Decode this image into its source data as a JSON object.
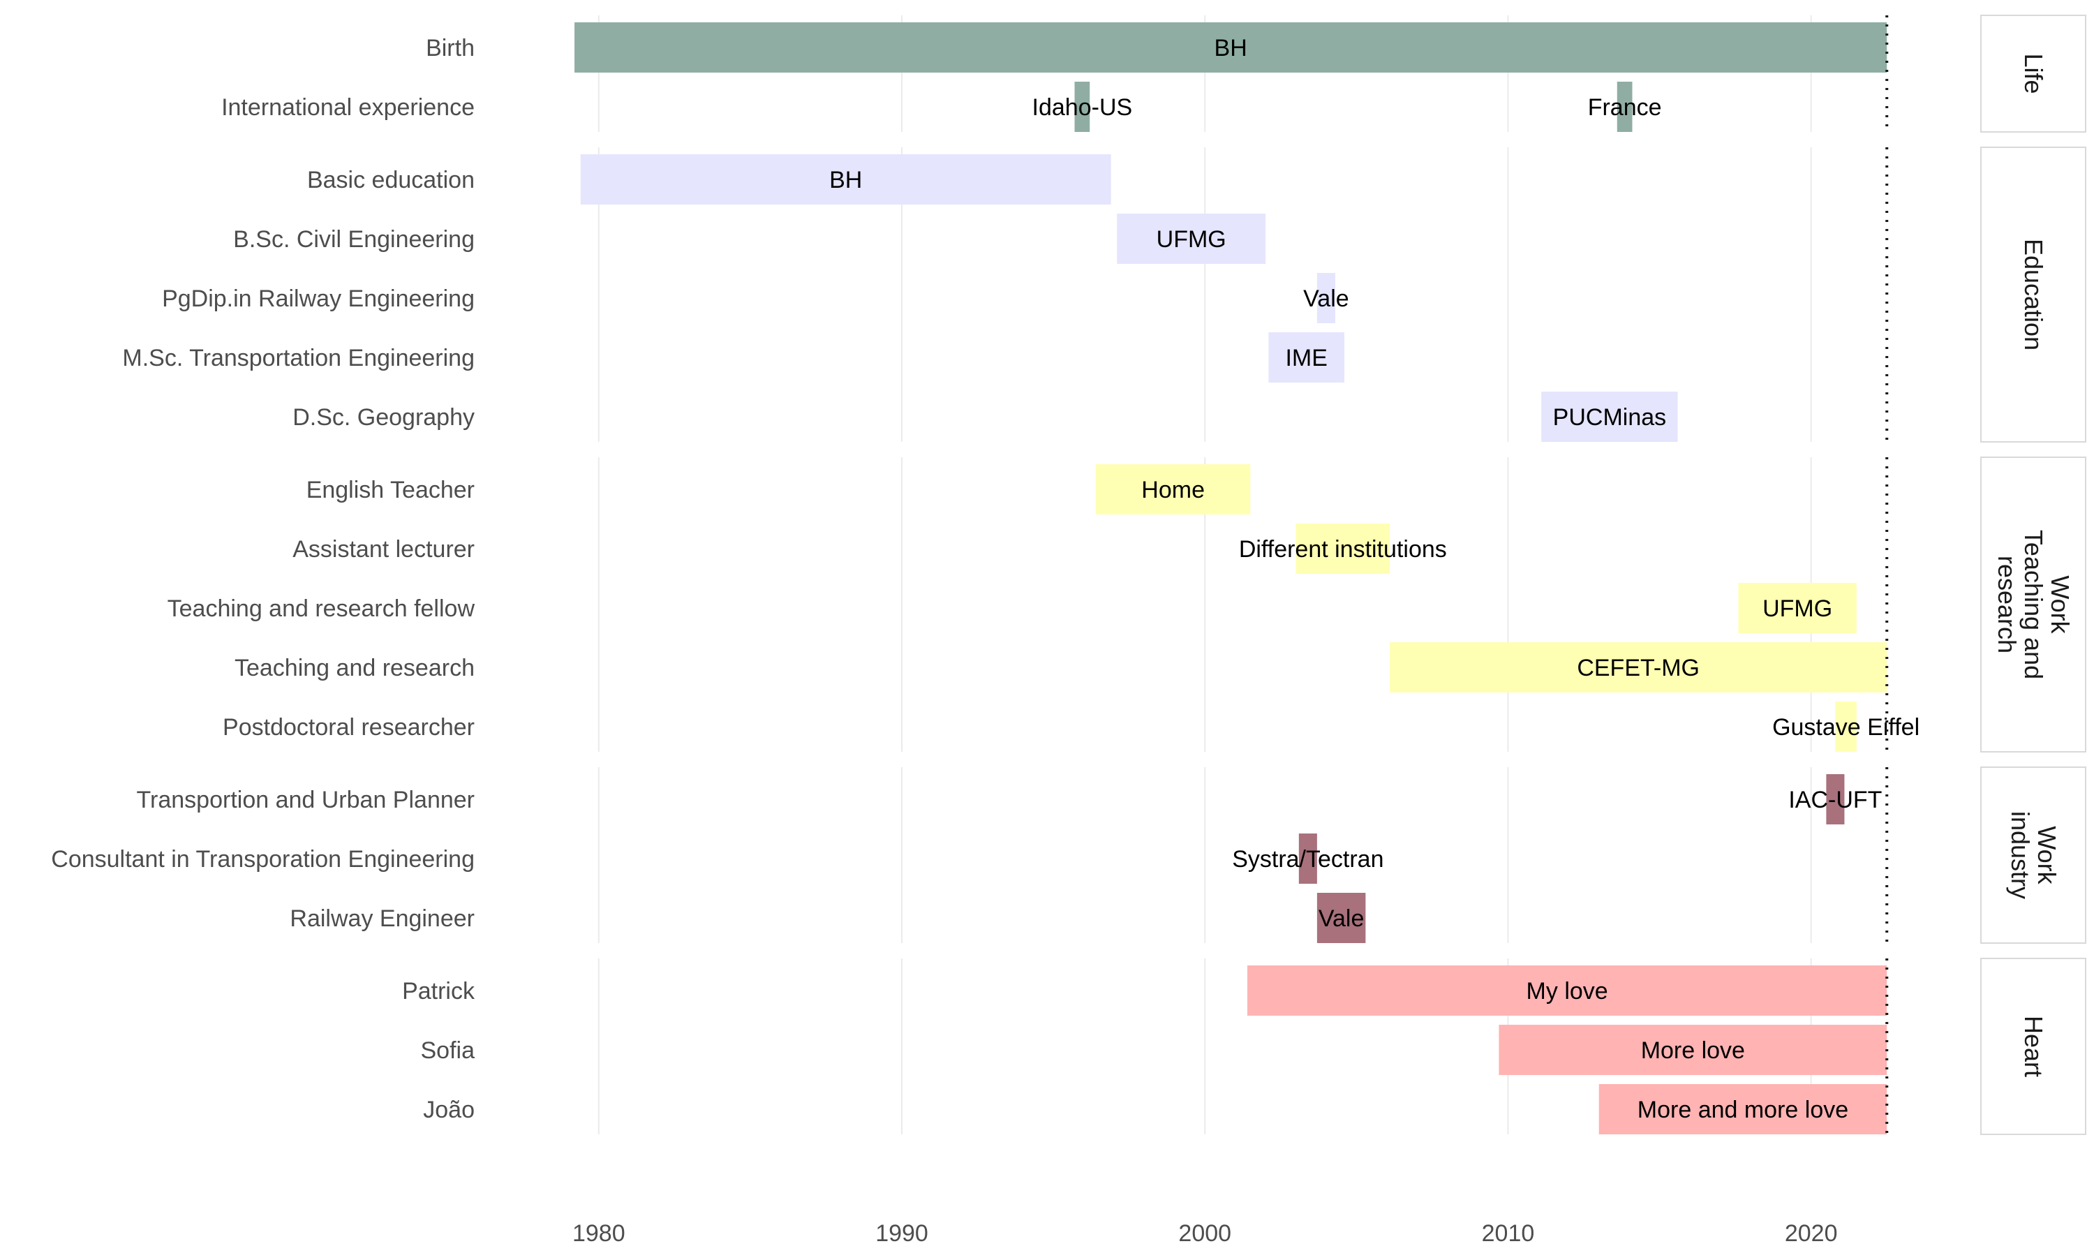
{
  "chart_data": {
    "type": "timeline",
    "title": "",
    "xlabel": "",
    "ylabel": "",
    "xlim": [
      1978.6,
      2023.6
    ],
    "x_ticks": [
      1980,
      1990,
      2000,
      2010,
      2020
    ],
    "reference_line": 2022.5,
    "grid": true,
    "legend": "none",
    "groups": [
      {
        "name": "Life",
        "color": "#8fada3",
        "rows": [
          {
            "label": "Birth",
            "bars": [
              {
                "text": "BH",
                "start": 1979.2,
                "end": 2022.5
              }
            ]
          },
          {
            "label": "International experience",
            "bars": [
              {
                "text": "Idaho-US",
                "start": 1995.7,
                "end": 1996.2
              },
              {
                "text": "France",
                "start": 2013.6,
                "end": 2014.1
              }
            ]
          }
        ]
      },
      {
        "name": "Education",
        "color": "#e5e5fd",
        "rows": [
          {
            "label": "Basic education",
            "bars": [
              {
                "text": "BH",
                "start": 1979.4,
                "end": 1996.9
              }
            ]
          },
          {
            "label": "B.Sc. Civil Engineering",
            "bars": [
              {
                "text": "UFMG",
                "start": 1997.1,
                "end": 2002.0
              }
            ]
          },
          {
            "label": "PgDip.in Railway Engineering",
            "bars": [
              {
                "text": "Vale",
                "start": 2003.7,
                "end": 2004.3
              }
            ]
          },
          {
            "label": "M.Sc. Transportation Engineering",
            "bars": [
              {
                "text": "IME",
                "start": 2002.1,
                "end": 2004.6
              }
            ]
          },
          {
            "label": "D.Sc. Geography",
            "bars": [
              {
                "text": "PUCMinas",
                "start": 2011.1,
                "end": 2015.6
              }
            ]
          }
        ]
      },
      {
        "name": "Work\nTeaching and\nresearch",
        "color": "#ffffb3",
        "rows": [
          {
            "label": "English Teacher",
            "bars": [
              {
                "text": "Home",
                "start": 1996.4,
                "end": 2001.5
              }
            ]
          },
          {
            "label": "Assistant lecturer",
            "bars": [
              {
                "text": "Different institutions",
                "start": 2003.0,
                "end": 2006.1
              }
            ]
          },
          {
            "label": "Teaching and research fellow",
            "bars": [
              {
                "text": "UFMG",
                "start": 2017.6,
                "end": 2021.5
              }
            ]
          },
          {
            "label": "Teaching and research",
            "bars": [
              {
                "text": "CEFET-MG",
                "start": 2006.1,
                "end": 2022.5
              }
            ]
          },
          {
            "label": "Postdoctoral researcher",
            "bars": [
              {
                "text": "Gustave Eiffel",
                "start": 2020.8,
                "end": 2021.5
              }
            ]
          }
        ]
      },
      {
        "name": "Work\nindustry",
        "color": "#a8717c",
        "rows": [
          {
            "label": "Transportion and Urban Planner",
            "bars": [
              {
                "text": "IAC-UFT",
                "start": 2020.5,
                "end": 2021.1
              }
            ]
          },
          {
            "label": "Consultant in Transporation Engineering",
            "bars": [
              {
                "text": "Systra/Tectran",
                "start": 2003.1,
                "end": 2003.7
              }
            ]
          },
          {
            "label": "Railway Engineer",
            "bars": [
              {
                "text": "Vale",
                "start": 2003.7,
                "end": 2005.3
              }
            ]
          }
        ]
      },
      {
        "name": "Heart",
        "color": "#ffb3b3",
        "rows": [
          {
            "label": "Patrick",
            "bars": [
              {
                "text": "My love",
                "start": 2001.4,
                "end": 2022.5
              }
            ]
          },
          {
            "label": "Sofia",
            "bars": [
              {
                "text": "More love",
                "start": 2009.7,
                "end": 2022.5
              }
            ]
          },
          {
            "label": "João",
            "bars": [
              {
                "text": "More and more love",
                "start": 2013.0,
                "end": 2022.5
              }
            ]
          }
        ]
      }
    ]
  }
}
